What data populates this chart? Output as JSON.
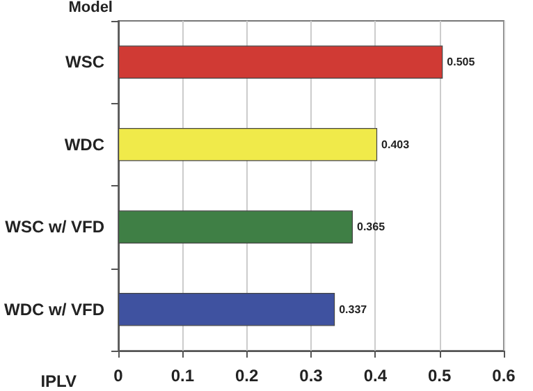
{
  "chart_data": {
    "type": "bar",
    "orientation": "horizontal",
    "xlabel": "IPLV",
    "ylabel": "Model",
    "categories": [
      "WSC",
      "WDC",
      "WSC w/ VFD",
      "WDC w/ VFD"
    ],
    "values": [
      0.505,
      0.403,
      0.365,
      0.337
    ],
    "colors": [
      "#d03a34",
      "#f0ea4a",
      "#3f7f45",
      "#3f52a0"
    ],
    "xlim": [
      0,
      0.6
    ],
    "xticks": [
      0,
      0.1,
      0.2,
      0.3,
      0.4,
      0.5,
      0.6
    ],
    "grid": "x",
    "data_labels": true
  }
}
